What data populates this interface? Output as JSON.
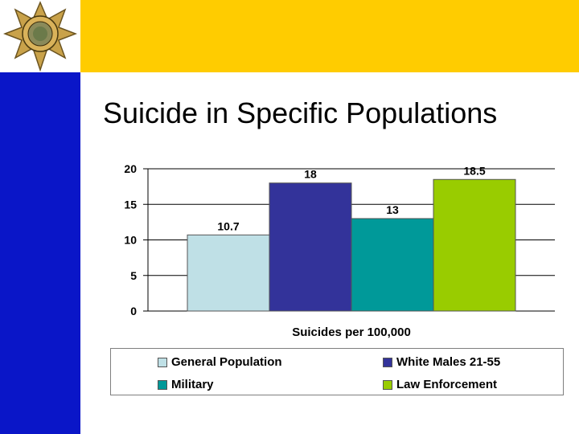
{
  "slide": {
    "title": "Suicide in Specific Populations"
  },
  "colors": {
    "left_bar": "#0a16c8",
    "top_bar": "#ffcc00",
    "logo_gold": "#c9a24a"
  },
  "logo": {
    "icon": "highway-patrol-star-badge-icon"
  },
  "chart_data": {
    "type": "bar",
    "categories": [
      "General Population",
      "White Males 21-55",
      "Military",
      "Law Enforcement"
    ],
    "values": [
      10.7,
      18,
      13,
      18.5
    ],
    "value_labels": [
      "10.7",
      "18",
      "13",
      "18.5"
    ],
    "colors": [
      "#bfe0e6",
      "#33339a",
      "#009999",
      "#99cc00"
    ],
    "title": "",
    "xlabel": "Suicides per 100,000",
    "ylabel": "",
    "ylim": [
      0,
      20
    ],
    "yticks": [
      0,
      5,
      10,
      15,
      20
    ],
    "grid": true,
    "legend": {
      "placement": "bottom",
      "entries": [
        "General Population",
        "White Males 21-55",
        "Military",
        "Law Enforcement"
      ]
    }
  }
}
